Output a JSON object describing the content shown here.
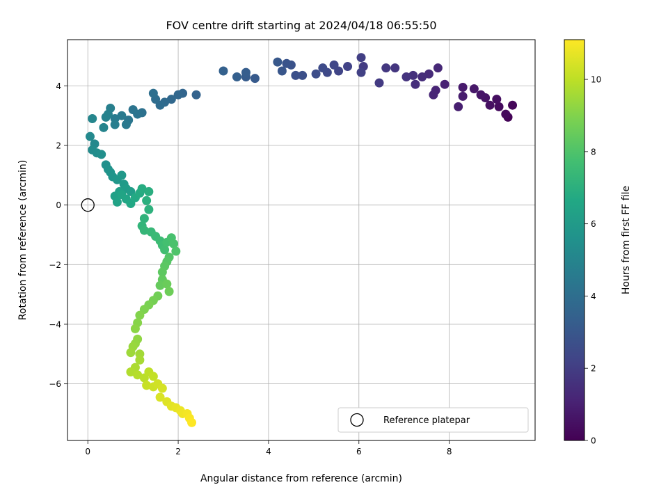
{
  "chart_data": {
    "type": "scatter",
    "title": "FOV centre drift starting at 2024/04/18 06:55:50",
    "xlabel": "Angular distance from reference (arcmin)",
    "ylabel": "Rotation from reference (arcmin)",
    "xlim": [
      -0.45,
      9.9
    ],
    "ylim": [
      -7.9,
      5.55
    ],
    "xticks": [
      0,
      2,
      4,
      6,
      8
    ],
    "yticks": [
      4,
      2,
      0,
      -2,
      -4,
      -6
    ],
    "xtick_labels": [
      "0",
      "2",
      "4",
      "6",
      "8"
    ],
    "ytick_labels": [
      "4",
      "2",
      "0",
      "−2",
      "−4",
      "−6"
    ],
    "grid": true,
    "colormap": "viridis",
    "colorbar": {
      "label": "Hours from first FF file",
      "range": [
        0,
        11.1
      ],
      "ticks": [
        0,
        2,
        4,
        6,
        8,
        10
      ],
      "tick_labels": [
        "0",
        "2",
        "4",
        "6",
        "8",
        "10"
      ]
    },
    "legend": {
      "label": "Reference platepar",
      "placement": "lower-right"
    },
    "reference_point": {
      "x": 0,
      "y": 0
    },
    "series": [
      {
        "points": [
          [
            9.3,
            2.95
          ],
          [
            9.4,
            3.35
          ],
          [
            9.25,
            3.05
          ],
          [
            9.1,
            3.3
          ],
          [
            9.05,
            3.55
          ],
          [
            8.9,
            3.35
          ],
          [
            8.8,
            3.6
          ],
          [
            8.7,
            3.7
          ],
          [
            8.55,
            3.9
          ],
          [
            8.3,
            3.95
          ],
          [
            8.3,
            3.65
          ],
          [
            8.2,
            3.3
          ],
          [
            7.9,
            4.05
          ],
          [
            7.7,
            3.85
          ],
          [
            7.65,
            3.7
          ],
          [
            7.75,
            4.6
          ],
          [
            7.55,
            4.4
          ],
          [
            7.4,
            4.3
          ],
          [
            7.25,
            4.05
          ],
          [
            7.2,
            4.35
          ],
          [
            7.05,
            4.3
          ],
          [
            6.8,
            4.6
          ],
          [
            6.6,
            4.6
          ],
          [
            6.45,
            4.1
          ],
          [
            6.1,
            4.65
          ],
          [
            6.05,
            4.95
          ],
          [
            6.05,
            4.45
          ],
          [
            5.75,
            4.65
          ],
          [
            5.55,
            4.5
          ],
          [
            5.45,
            4.7
          ],
          [
            5.3,
            4.45
          ],
          [
            5.2,
            4.6
          ],
          [
            5.05,
            4.4
          ],
          [
            4.75,
            4.35
          ],
          [
            4.6,
            4.35
          ],
          [
            4.5,
            4.7
          ],
          [
            4.4,
            4.75
          ],
          [
            4.3,
            4.5
          ],
          [
            4.2,
            4.8
          ],
          [
            3.7,
            4.25
          ],
          [
            3.5,
            4.3
          ],
          [
            3.5,
            4.45
          ],
          [
            3.3,
            4.3
          ],
          [
            3.0,
            4.5
          ],
          [
            2.4,
            3.7
          ],
          [
            2.1,
            3.75
          ],
          [
            2.0,
            3.7
          ],
          [
            1.85,
            3.55
          ],
          [
            1.7,
            3.45
          ],
          [
            1.6,
            3.35
          ],
          [
            1.5,
            3.55
          ],
          [
            1.45,
            3.75
          ],
          [
            1.2,
            3.1
          ],
          [
            1.1,
            3.05
          ],
          [
            1.0,
            3.2
          ],
          [
            0.9,
            2.85
          ],
          [
            0.85,
            2.7
          ],
          [
            0.75,
            3.0
          ],
          [
            0.6,
            2.9
          ],
          [
            0.6,
            2.7
          ],
          [
            0.5,
            3.25
          ],
          [
            0.45,
            3.05
          ],
          [
            0.4,
            2.95
          ],
          [
            0.35,
            2.6
          ],
          [
            0.1,
            2.9
          ],
          [
            0.15,
            2.05
          ],
          [
            0.05,
            2.3
          ],
          [
            0.1,
            1.85
          ],
          [
            0.2,
            1.75
          ],
          [
            0.3,
            1.7
          ],
          [
            0.4,
            1.35
          ],
          [
            0.45,
            1.2
          ],
          [
            0.5,
            1.1
          ],
          [
            0.55,
            0.95
          ],
          [
            0.65,
            0.85
          ],
          [
            0.75,
            1.0
          ],
          [
            0.8,
            0.7
          ],
          [
            0.85,
            0.55
          ],
          [
            0.95,
            0.45
          ],
          [
            0.7,
            0.45
          ],
          [
            0.6,
            0.3
          ],
          [
            0.65,
            0.1
          ],
          [
            0.75,
            0.35
          ],
          [
            0.85,
            0.2
          ],
          [
            0.95,
            0.05
          ],
          [
            1.05,
            0.25
          ],
          [
            1.15,
            0.4
          ],
          [
            1.2,
            0.55
          ],
          [
            1.35,
            0.45
          ],
          [
            1.3,
            0.15
          ],
          [
            1.35,
            -0.15
          ],
          [
            1.25,
            -0.45
          ],
          [
            1.2,
            -0.7
          ],
          [
            1.25,
            -0.85
          ],
          [
            1.4,
            -0.9
          ],
          [
            1.5,
            -1.05
          ],
          [
            1.6,
            -1.2
          ],
          [
            1.65,
            -1.35
          ],
          [
            1.7,
            -1.5
          ],
          [
            1.75,
            -1.25
          ],
          [
            1.85,
            -1.1
          ],
          [
            1.9,
            -1.3
          ],
          [
            1.95,
            -1.55
          ],
          [
            1.8,
            -1.75
          ],
          [
            1.75,
            -1.9
          ],
          [
            1.7,
            -2.05
          ],
          [
            1.65,
            -2.25
          ],
          [
            1.65,
            -2.5
          ],
          [
            1.6,
            -2.7
          ],
          [
            1.75,
            -2.65
          ],
          [
            1.8,
            -2.9
          ],
          [
            1.55,
            -3.05
          ],
          [
            1.45,
            -3.2
          ],
          [
            1.35,
            -3.35
          ],
          [
            1.25,
            -3.5
          ],
          [
            1.15,
            -3.7
          ],
          [
            1.1,
            -3.95
          ],
          [
            1.05,
            -4.15
          ],
          [
            1.1,
            -4.5
          ],
          [
            1.05,
            -4.65
          ],
          [
            1.0,
            -4.75
          ],
          [
            0.95,
            -4.95
          ],
          [
            1.15,
            -5.0
          ],
          [
            1.15,
            -5.2
          ],
          [
            1.05,
            -5.45
          ],
          [
            0.95,
            -5.6
          ],
          [
            1.1,
            -5.7
          ],
          [
            1.25,
            -5.8
          ],
          [
            1.35,
            -5.6
          ],
          [
            1.45,
            -5.75
          ],
          [
            1.3,
            -6.05
          ],
          [
            1.45,
            -6.1
          ],
          [
            1.55,
            -6.0
          ],
          [
            1.65,
            -6.15
          ],
          [
            1.6,
            -6.45
          ],
          [
            1.75,
            -6.6
          ],
          [
            1.85,
            -6.75
          ],
          [
            1.95,
            -6.8
          ],
          [
            2.05,
            -6.9
          ],
          [
            2.1,
            -7.0
          ],
          [
            2.2,
            -7.0
          ],
          [
            2.25,
            -7.15
          ],
          [
            2.3,
            -7.3
          ]
        ]
      }
    ]
  }
}
